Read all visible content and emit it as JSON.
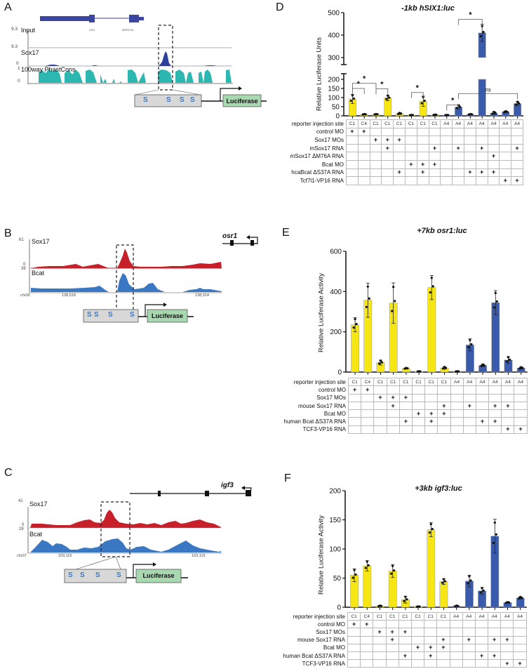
{
  "panels": {
    "A": {
      "letter": "A",
      "tracks": [
        {
          "name": "Input",
          "max": "9.3",
          "min": "0"
        },
        {
          "name": "Sox17",
          "max": "9.3",
          "min": "0"
        },
        {
          "name": "100way PhastCons",
          "max": "1",
          "min": "0"
        }
      ],
      "genes": [
        "SIX1",
        "MIR9718"
      ],
      "construct": {
        "sites": [
          "S",
          "S",
          "S",
          "S"
        ],
        "reporter": "Luciferase"
      }
    },
    "B": {
      "letter": "B",
      "gene": "osr1",
      "tracks": [
        {
          "name": "Sox17",
          "max": "61",
          "min": "0"
        },
        {
          "name": "Bcat",
          "max": "39",
          "min": "0"
        }
      ],
      "chrom": "chr05",
      "coords": [
        "138,518",
        "138,524"
      ],
      "construct": {
        "sites": [
          "S",
          "S",
          "S",
          "S"
        ],
        "reporter": "Luciferase"
      }
    },
    "C": {
      "letter": "C",
      "gene": "igf3",
      "tracks": [
        {
          "name": "Sox17",
          "max": "41",
          "min": "0"
        },
        {
          "name": "Bcat",
          "max": "28",
          "min": "0"
        }
      ],
      "chrom": "chr07",
      "coords": [
        "103,115",
        "103,119"
      ],
      "construct": {
        "sites": [
          "S",
          "S",
          "S",
          "S"
        ],
        "reporter": "Luciferase"
      }
    },
    "D": {
      "letter": "D"
    },
    "E": {
      "letter": "E"
    },
    "F": {
      "letter": "F"
    }
  },
  "chart_data": [
    {
      "panel": "D",
      "type": "bar",
      "title": "-1kb hSIX1:luc",
      "ylabel": "Relative Luciferase Units",
      "ylim": [
        0,
        500
      ],
      "axis_break": [
        200,
        300
      ],
      "yticks": [
        0,
        50,
        100,
        150,
        200,
        300,
        400,
        500
      ],
      "categories": [
        "1",
        "2",
        "3",
        "4",
        "5",
        "6",
        "7",
        "8",
        "9",
        "10",
        "11",
        "12",
        "13",
        "14",
        "15"
      ],
      "values": [
        92,
        8,
        8,
        98,
        12,
        4,
        80,
        5,
        4,
        48,
        8,
        410,
        15,
        22,
        67
      ],
      "errors": [
        25,
        2,
        2,
        15,
        5,
        1,
        28,
        2,
        1,
        12,
        2,
        38,
        8,
        4,
        12
      ],
      "colors": [
        "yellow",
        "yellow",
        "yellow",
        "yellow",
        "yellow",
        "yellow",
        "yellow",
        "yellow",
        "blue",
        "blue",
        "blue",
        "blue",
        "blue",
        "blue",
        "blue"
      ],
      "palette": {
        "yellow": "#f5e614",
        "blue": "#3a5bab"
      },
      "significance": [
        {
          "from": 1,
          "to": 2,
          "label": "*"
        },
        {
          "from": 1,
          "to": 3,
          "label": "*"
        },
        {
          "from": 1,
          "to": 6,
          "label": "*"
        },
        {
          "from": 3,
          "to": 4,
          "label": "*"
        },
        {
          "from": 7,
          "to": 6,
          "label": "*"
        },
        {
          "from": 9,
          "to": 10,
          "label": "*"
        },
        {
          "from": 10,
          "to": 12,
          "label": "*"
        },
        {
          "from": 10,
          "to": 15,
          "label": "ns"
        }
      ],
      "table": {
        "rows": [
          {
            "label": "reporter injection site",
            "cells": [
              "C1",
              "C4",
              "C1",
              "C1",
              "C1",
              "C1",
              "C1",
              "C1",
              "A4",
              "A4",
              "A4",
              "A4",
              "A4",
              "A4",
              "A4"
            ]
          },
          {
            "label": "control MO",
            "plus": [
              1,
              2
            ]
          },
          {
            "label": "Sox17 MOs",
            "plus": [
              3,
              4,
              5
            ]
          },
          {
            "label": "mSox17 RNA",
            "plus": [
              4,
              8,
              10,
              12,
              15
            ]
          },
          {
            "label": "mSox17      ΔM76A RNA",
            "plus": [
              13
            ]
          },
          {
            "label": "Bcat MO",
            "plus": [
              6,
              7,
              8
            ]
          },
          {
            "label": "hcaBcat      ΔS37A RNA",
            "plus": [
              5,
              7,
              11,
              12,
              13
            ]
          },
          {
            "label": "Tcf7l1-VP16 RNA",
            "plus": [
              14,
              15
            ]
          }
        ]
      }
    },
    {
      "panel": "E",
      "type": "bar",
      "title": "+7kb osr1:luc",
      "ylabel": "Relative Luciferase Activity",
      "ylim": [
        0,
        600
      ],
      "yticks": [
        0,
        200,
        400,
        600
      ],
      "categories": [
        "1",
        "2",
        "3",
        "4",
        "5",
        "6",
        "7",
        "8",
        "9",
        "10",
        "11",
        "12",
        "13",
        "14"
      ],
      "values": [
        235,
        357,
        47,
        343,
        18,
        3,
        420,
        20,
        3,
        135,
        33,
        345,
        60,
        20
      ],
      "errors": [
        35,
        85,
        12,
        100,
        3,
        1,
        60,
        6,
        1,
        30,
        6,
        60,
        17,
        5
      ],
      "colors": [
        "yellow",
        "yellow",
        "yellow",
        "yellow",
        "yellow",
        "yellow",
        "yellow",
        "yellow",
        "blue",
        "blue",
        "blue",
        "blue",
        "blue",
        "blue"
      ],
      "palette": {
        "yellow": "#f5e614",
        "blue": "#3a5bab"
      },
      "table": {
        "rows": [
          {
            "label": "reporter injection site",
            "cells": [
              "C1",
              "C4",
              "C1",
              "C1",
              "C1",
              "C1",
              "C1",
              "C1",
              "A4",
              "A4",
              "A4",
              "A4",
              "A4",
              "A4"
            ]
          },
          {
            "label": "control MO",
            "plus": [
              1,
              2
            ]
          },
          {
            "label": "Sox17 MOs",
            "plus": [
              3,
              4,
              5
            ]
          },
          {
            "label": "mouse Sox17 RNA",
            "plus": [
              4,
              8,
              10,
              12,
              13
            ]
          },
          {
            "label": "Bcat MO",
            "plus": [
              6,
              7,
              8
            ]
          },
          {
            "label": "human Bcat ΔS37A RNA",
            "plus": [
              5,
              7,
              11,
              12
            ]
          },
          {
            "label": "TCF3-VP16 RNA",
            "plus": [
              13,
              14
            ]
          }
        ]
      }
    },
    {
      "panel": "F",
      "type": "bar",
      "title": "+3kb igf3:luc",
      "ylabel": "Relative Luciferase Activity",
      "ylim": [
        0,
        200
      ],
      "yticks": [
        0,
        50,
        100,
        150,
        200
      ],
      "categories": [
        "1",
        "2",
        "3",
        "4",
        "5",
        "6",
        "7",
        "8",
        "9",
        "10",
        "11",
        "12",
        "13",
        "14"
      ],
      "values": [
        55,
        71,
        2,
        62,
        13,
        1,
        133,
        44,
        2,
        45,
        28,
        122,
        8,
        16
      ],
      "errors": [
        11,
        9,
        1,
        11,
        6,
        0.5,
        12,
        5,
        1,
        10,
        6,
        29,
        1,
        2
      ],
      "colors": [
        "yellow",
        "yellow",
        "yellow",
        "yellow",
        "yellow",
        "yellow",
        "yellow",
        "yellow",
        "blue",
        "blue",
        "blue",
        "blue",
        "blue",
        "blue"
      ],
      "palette": {
        "yellow": "#f5e614",
        "blue": "#3a5bab"
      },
      "table": {
        "rows": [
          {
            "label": "reporter injection site",
            "cells": [
              "C1",
              "C4",
              "C1",
              "C1",
              "C1",
              "C1",
              "C1",
              "C1",
              "A4",
              "A4",
              "A4",
              "A4",
              "A4",
              "A4"
            ]
          },
          {
            "label": "control MO",
            "plus": [
              1,
              2
            ]
          },
          {
            "label": "Sox17 MOs",
            "plus": [
              3,
              4,
              5
            ]
          },
          {
            "label": "mouse Sox17 RNA",
            "plus": [
              4,
              8,
              10,
              12,
              13
            ]
          },
          {
            "label": "Bcat MO",
            "plus": [
              6,
              7,
              8
            ]
          },
          {
            "label": "human Bcat ΔS37A RNA",
            "plus": [
              5,
              7,
              11,
              12
            ]
          },
          {
            "label": "TCF3-VP16 RNA",
            "plus": [
              13,
              14
            ]
          }
        ]
      }
    }
  ]
}
